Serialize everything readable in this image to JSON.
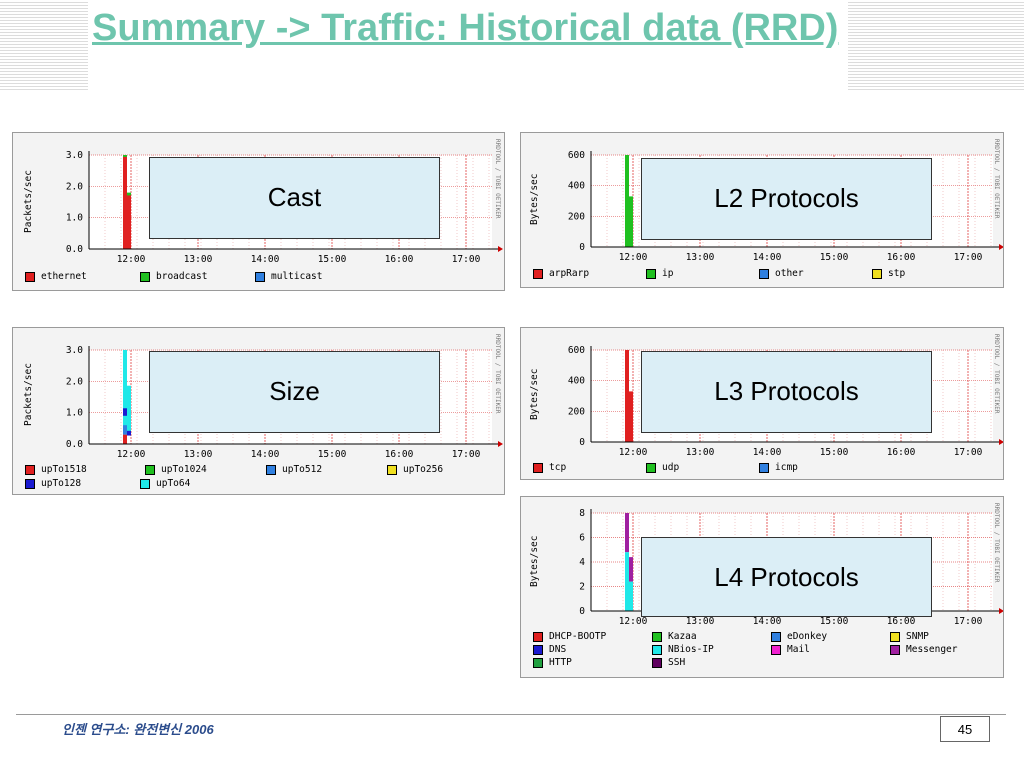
{
  "title": "Summary -> Traffic: Historical data (RRD)",
  "footer": {
    "text": "인젠 연구소: 완전변신 2006",
    "page": "45"
  },
  "rrdtool_label": "RRDTOOL / TOBI OETIKER",
  "graphs": [
    {
      "id": "cast",
      "label": "Cast",
      "ylabel": "Packets/sec",
      "yticks": [
        "3.0",
        "2.0",
        "1.0",
        "0.0"
      ],
      "xticks": [
        "12:00",
        "13:00",
        "14:00",
        "15:00",
        "16:00",
        "17:00"
      ],
      "legend": [
        {
          "name": "ethernet",
          "color": "#e02020"
        },
        {
          "name": "broadcast",
          "color": "#20c020"
        },
        {
          "name": "multicast",
          "color": "#3080e0"
        }
      ]
    },
    {
      "id": "l2",
      "label": "L2 Protocols",
      "ylabel": "Bytes/sec",
      "yticks": [
        "600",
        "400",
        "200",
        "0"
      ],
      "xticks": [
        "12:00",
        "13:00",
        "14:00",
        "15:00",
        "16:00",
        "17:00"
      ],
      "legend": [
        {
          "name": "arpRarp",
          "color": "#e02020"
        },
        {
          "name": "ip",
          "color": "#20c020"
        },
        {
          "name": "other",
          "color": "#3080e0"
        },
        {
          "name": "stp",
          "color": "#f0e020"
        }
      ]
    },
    {
      "id": "size",
      "label": "Size",
      "ylabel": "Packets/sec",
      "yticks": [
        "3.0",
        "2.0",
        "1.0",
        "0.0"
      ],
      "xticks": [
        "12:00",
        "13:00",
        "14:00",
        "15:00",
        "16:00",
        "17:00"
      ],
      "legend": [
        {
          "name": "upTo1518",
          "color": "#e02020"
        },
        {
          "name": "upTo1024",
          "color": "#20c020"
        },
        {
          "name": "upTo512",
          "color": "#3080e0"
        },
        {
          "name": "upTo256",
          "color": "#f0e020"
        },
        {
          "name": "upTo128",
          "color": "#1a1ad0"
        },
        {
          "name": "upTo64",
          "color": "#20e8e8"
        }
      ]
    },
    {
      "id": "l3",
      "label": "L3 Protocols",
      "ylabel": "Bytes/sec",
      "yticks": [
        "600",
        "400",
        "200",
        "0"
      ],
      "xticks": [
        "12:00",
        "13:00",
        "14:00",
        "15:00",
        "16:00",
        "17:00"
      ],
      "legend": [
        {
          "name": "tcp",
          "color": "#e02020"
        },
        {
          "name": "udp",
          "color": "#20c020"
        },
        {
          "name": "icmp",
          "color": "#3080e0"
        }
      ]
    },
    {
      "id": "l4",
      "label": "L4 Protocols",
      "ylabel": "Bytes/sec",
      "yticks": [
        "8",
        "6",
        "4",
        "2",
        "0"
      ],
      "xticks": [
        "12:00",
        "13:00",
        "14:00",
        "15:00",
        "16:00",
        "17:00"
      ],
      "legend": [
        {
          "name": "DHCP-BOOTP",
          "color": "#e02020"
        },
        {
          "name": "Kazaa",
          "color": "#20c020"
        },
        {
          "name": "eDonkey",
          "color": "#3080e0"
        },
        {
          "name": "SNMP",
          "color": "#f0e020"
        },
        {
          "name": "DNS",
          "color": "#1a1ad0"
        },
        {
          "name": "NBios-IP",
          "color": "#20e8e8"
        },
        {
          "name": "Mail",
          "color": "#f020d0"
        },
        {
          "name": "Messenger",
          "color": "#a020a0"
        },
        {
          "name": "HTTP",
          "color": "#20a040"
        },
        {
          "name": "SSH",
          "color": "#600060"
        }
      ]
    }
  ]
}
